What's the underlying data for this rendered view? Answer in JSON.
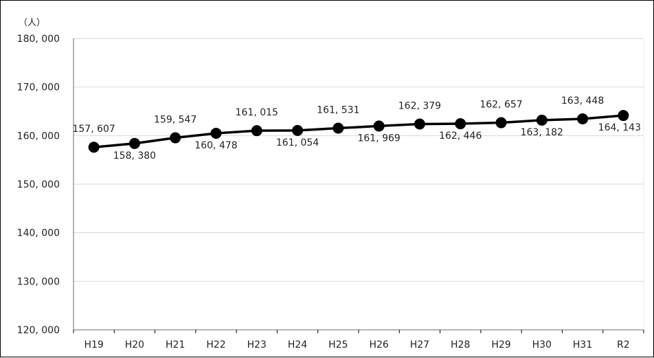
{
  "chart_data": {
    "type": "line",
    "unit_label": "（人）",
    "categories": [
      "H19",
      "H20",
      "H21",
      "H22",
      "H23",
      "H24",
      "H25",
      "H26",
      "H27",
      "H28",
      "H29",
      "H30",
      "H31",
      "R2"
    ],
    "values": [
      157607,
      158380,
      159547,
      160478,
      161015,
      161054,
      161531,
      161969,
      162379,
      162446,
      162657,
      163182,
      163448,
      164143
    ],
    "data_labels": [
      "157, 607",
      "158, 380",
      "159, 547",
      "160, 478",
      "161, 015",
      "161, 054",
      "161, 531",
      "161, 969",
      "162, 379",
      "162, 446",
      "162, 657",
      "163, 182",
      "163, 448",
      "164, 143"
    ],
    "label_positions": [
      "above",
      "below",
      "above",
      "below",
      "above",
      "below",
      "above",
      "below",
      "above",
      "below",
      "above",
      "below",
      "above",
      "below"
    ],
    "ylim": [
      120000,
      180000
    ],
    "yticks": [
      120000,
      130000,
      140000,
      150000,
      160000,
      170000,
      180000
    ],
    "ytick_labels": [
      "120, 000",
      "130, 000",
      "140, 000",
      "150, 000",
      "160, 000",
      "170, 000",
      "180, 000"
    ],
    "title": "",
    "xlabel": "",
    "ylabel": "",
    "grid": true,
    "line_color": "#000000",
    "grid_color": "#d9d9d9"
  }
}
